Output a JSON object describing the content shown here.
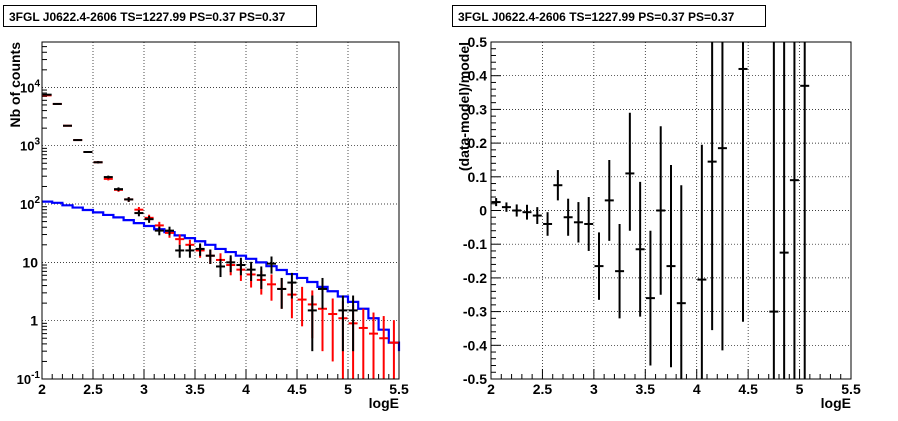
{
  "chart_data": [
    {
      "type": "line",
      "title": "3FGL J0622.4-2606 TS=1227.99 PS=0.37 PS=0.37",
      "xlabel": "logE",
      "ylabel": "Nb of counts",
      "xlim": [
        2,
        5.5
      ],
      "ylim": [
        0.1,
        60000
      ],
      "yscale": "log",
      "grid": true,
      "x_ticks": [
        "2",
        "2.5",
        "3",
        "3.5",
        "4",
        "4.5",
        "5",
        "5.5"
      ],
      "y_ticks": [
        {
          "value": 0.1,
          "label": "10",
          "exp": "-1"
        },
        {
          "value": 1,
          "label": "1",
          "exp": ""
        },
        {
          "value": 10,
          "label": "10",
          "exp": ""
        },
        {
          "value": 100,
          "label": "10",
          "exp": "2"
        },
        {
          "value": 1000,
          "label": "10",
          "exp": "3"
        },
        {
          "value": 10000,
          "label": "10",
          "exp": "4"
        }
      ],
      "x_bin_edges": [
        2.0,
        2.1,
        2.2,
        2.3,
        2.4,
        2.5,
        2.6,
        2.7,
        2.8,
        2.9,
        3.0,
        3.1,
        3.2,
        3.3,
        3.4,
        3.5,
        3.6,
        3.7,
        3.8,
        3.9,
        4.0,
        4.1,
        4.2,
        4.3,
        4.4,
        4.5,
        4.6,
        4.7,
        4.8,
        4.9,
        5.0,
        5.1,
        5.2,
        5.3,
        5.4,
        5.5
      ],
      "series": [
        {
          "color": "#000000",
          "style": "errorbar",
          "x": [
            2.05,
            2.15,
            2.25,
            2.35,
            2.45,
            2.55,
            2.65,
            2.75,
            2.85,
            2.95,
            3.05,
            3.15,
            3.25,
            3.35,
            3.45,
            3.55,
            3.65,
            3.75,
            3.85,
            3.95,
            4.05,
            4.15,
            4.25,
            4.35,
            4.45,
            4.65,
            4.75,
            4.95,
            5.05
          ],
          "y": [
            7500,
            5200,
            2200,
            1250,
            780,
            520,
            290,
            180,
            120,
            70,
            55,
            35,
            35,
            16,
            16,
            17,
            13,
            8.5,
            10,
            9,
            7.5,
            6,
            9.5,
            3.5,
            4.5,
            1.5,
            3.5,
            1.5,
            1.5
          ],
          "yerr_low": [
            90,
            72,
            47,
            35,
            28,
            23,
            17,
            13,
            11,
            8.4,
            7.4,
            5.9,
            5.9,
            4,
            4,
            4.1,
            3.6,
            2.9,
            3.2,
            3,
            2.7,
            2.5,
            3.1,
            1.9,
            2.1,
            1.2,
            1.9,
            1.2,
            1.2
          ],
          "yerr_high": [
            90,
            72,
            47,
            35,
            28,
            23,
            17,
            13,
            11,
            8.4,
            7.4,
            5.9,
            5.9,
            4,
            4,
            4.1,
            3.6,
            2.9,
            3.2,
            3,
            2.7,
            2.5,
            3.1,
            1.9,
            2.1,
            1.2,
            1.9,
            1.2,
            1.2
          ]
        },
        {
          "color": "#ff0000",
          "style": "errorbar",
          "x": [
            2.05,
            2.15,
            2.25,
            2.35,
            2.45,
            2.55,
            2.65,
            2.75,
            2.85,
            2.95,
            3.05,
            3.15,
            3.25,
            3.35,
            3.45,
            3.55,
            3.65,
            3.75,
            3.85,
            3.95,
            4.05,
            4.15,
            4.25,
            4.35,
            4.45,
            4.55,
            4.65,
            4.75,
            4.85,
            4.95,
            5.05,
            5.15,
            5.25,
            5.35,
            5.45
          ],
          "y": [
            7300,
            5200,
            2200,
            1250,
            780,
            520,
            270,
            175,
            120,
            80,
            58,
            43,
            32,
            25,
            20,
            16,
            13,
            11,
            9,
            7.5,
            6.2,
            5,
            4.2,
            3.5,
            2.8,
            2.3,
            1.9,
            1.6,
            1.3,
            1.1,
            0.9,
            0.75,
            0.6,
            0.5,
            0.42
          ],
          "yerr_low": [
            86,
            72,
            47,
            35,
            28,
            23,
            16,
            13,
            11,
            9,
            7.6,
            6.5,
            5.6,
            5,
            4.4,
            4,
            3.6,
            3.3,
            3,
            2.7,
            2.5,
            2.2,
            2,
            1.9,
            1.7,
            1.5,
            1.4,
            1.3,
            1.1,
            1.05,
            0.85,
            0.7,
            0.55,
            0.45,
            0.4
          ],
          "yerr_high": [
            86,
            72,
            47,
            35,
            28,
            23,
            16,
            13,
            11,
            9,
            7.6,
            6.5,
            5.6,
            5,
            4.4,
            4,
            3.6,
            3.3,
            3,
            2.7,
            2.5,
            2.2,
            2,
            1.9,
            1.7,
            1.5,
            1.4,
            1.3,
            1.1,
            1.05,
            0.95,
            0.85,
            0.78,
            0.7,
            0.6
          ]
        },
        {
          "color": "#0000ff",
          "style": "step",
          "y": [
            110,
            105,
            95,
            87,
            79,
            72,
            65,
            59,
            53,
            47,
            42,
            37,
            33,
            29,
            26,
            23,
            20,
            17,
            15,
            13,
            11.5,
            10,
            8.6,
            7.4,
            6.3,
            5.4,
            4.6,
            3.8,
            3.2,
            2.6,
            2.1,
            1.6,
            1.1,
            0.7,
            0.42,
            0.3
          ]
        }
      ]
    },
    {
      "type": "scatter",
      "title": "3FGL J0622.4-2606 TS=1227.99 PS=0.37 PS=0.37",
      "xlabel": "logE",
      "ylabel": "(data-model)/model",
      "xlim": [
        2,
        5.5
      ],
      "ylim": [
        -0.5,
        0.5
      ],
      "grid": true,
      "x_ticks": [
        "2",
        "2.5",
        "3",
        "3.5",
        "4",
        "4.5",
        "5",
        "5.5"
      ],
      "y_ticks": [
        "-0.5",
        "-0.4",
        "-0.3",
        "-0.2",
        "-0.1",
        "0",
        "0.1",
        "0.2",
        "0.3",
        "0.4",
        "0.5"
      ],
      "series": [
        {
          "color": "#000000",
          "style": "errorbar",
          "x": [
            2.05,
            2.15,
            2.25,
            2.35,
            2.45,
            2.55,
            2.65,
            2.75,
            2.85,
            2.95,
            3.05,
            3.15,
            3.25,
            3.35,
            3.45,
            3.55,
            3.65,
            3.75,
            3.85,
            4.05,
            4.15,
            4.25,
            4.45,
            4.75,
            4.85,
            4.95,
            5.05
          ],
          "y": [
            0.025,
            0.01,
            0.0,
            -0.005,
            -0.015,
            -0.04,
            0.075,
            -0.02,
            -0.035,
            -0.04,
            -0.165,
            0.03,
            -0.18,
            0.11,
            -0.115,
            -0.26,
            0.0,
            -0.165,
            -0.275,
            -0.205,
            0.145,
            0.185,
            0.42,
            -0.3,
            -0.125,
            0.09,
            0.37
          ],
          "yerr_low": [
            0.012,
            0.014,
            0.018,
            0.022,
            0.025,
            0.035,
            0.045,
            0.055,
            0.06,
            0.08,
            0.1,
            0.12,
            0.14,
            0.17,
            0.2,
            0.2,
            0.25,
            0.3,
            0.35,
            0.45,
            0.5,
            0.6,
            0.75,
            1.0,
            1.0,
            1.0,
            1.0
          ],
          "yerr_high": [
            0.012,
            0.014,
            0.018,
            0.022,
            0.025,
            0.035,
            0.045,
            0.055,
            0.06,
            0.08,
            0.1,
            0.12,
            0.14,
            0.18,
            0.2,
            0.2,
            0.25,
            0.3,
            0.35,
            0.4,
            0.5,
            0.6,
            0.75,
            1.0,
            1.0,
            1.0,
            1.0
          ]
        }
      ]
    }
  ]
}
